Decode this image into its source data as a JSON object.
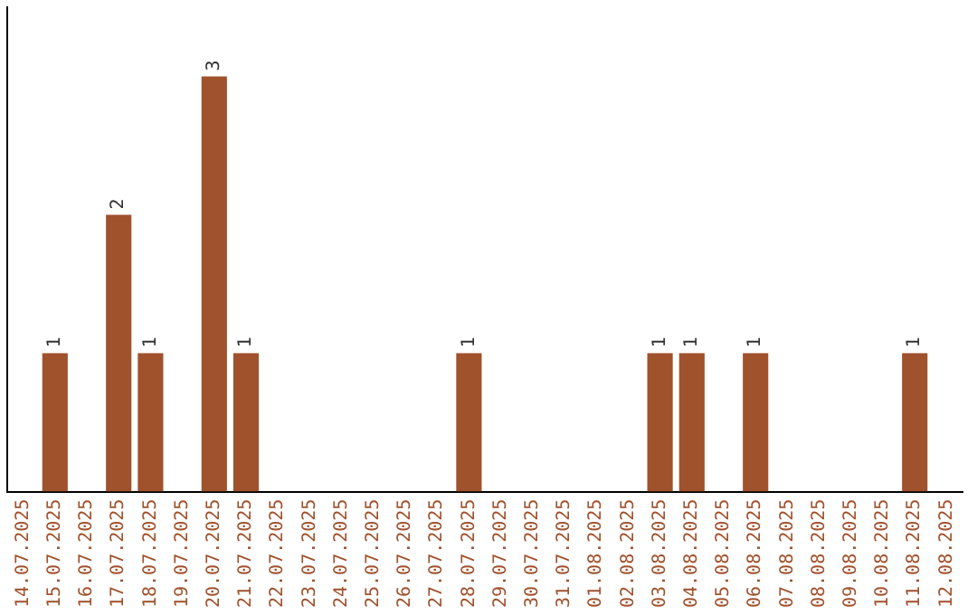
{
  "chart_data": {
    "type": "bar",
    "categories": [
      "14.07.2025",
      "15.07.2025",
      "16.07.2025",
      "17.07.2025",
      "18.07.2025",
      "19.07.2025",
      "20.07.2025",
      "21.07.2025",
      "22.07.2025",
      "23.07.2025",
      "24.07.2025",
      "25.07.2025",
      "26.07.2025",
      "27.07.2025",
      "28.07.2025",
      "29.07.2025",
      "30.07.2025",
      "31.07.2025",
      "01.08.2025",
      "02.08.2025",
      "03.08.2025",
      "04.08.2025",
      "05.08.2025",
      "06.08.2025",
      "07.08.2025",
      "08.08.2025",
      "09.08.2025",
      "10.08.2025",
      "11.08.2025",
      "12.08.2025"
    ],
    "values": [
      0,
      1,
      0,
      2,
      1,
      0,
      3,
      1,
      0,
      0,
      0,
      0,
      0,
      0,
      1,
      0,
      0,
      0,
      0,
      0,
      1,
      1,
      0,
      1,
      0,
      0,
      0,
      0,
      1,
      0
    ],
    "value_labels": [
      null,
      "1",
      null,
      "2",
      "1",
      null,
      "3",
      "1",
      null,
      null,
      null,
      null,
      null,
      null,
      "1",
      null,
      null,
      null,
      null,
      null,
      "1",
      "1",
      null,
      "1",
      null,
      null,
      null,
      null,
      "1",
      null
    ],
    "color": "#a0522d",
    "grid": false,
    "legend": false,
    "tick_labels": "x"
  }
}
